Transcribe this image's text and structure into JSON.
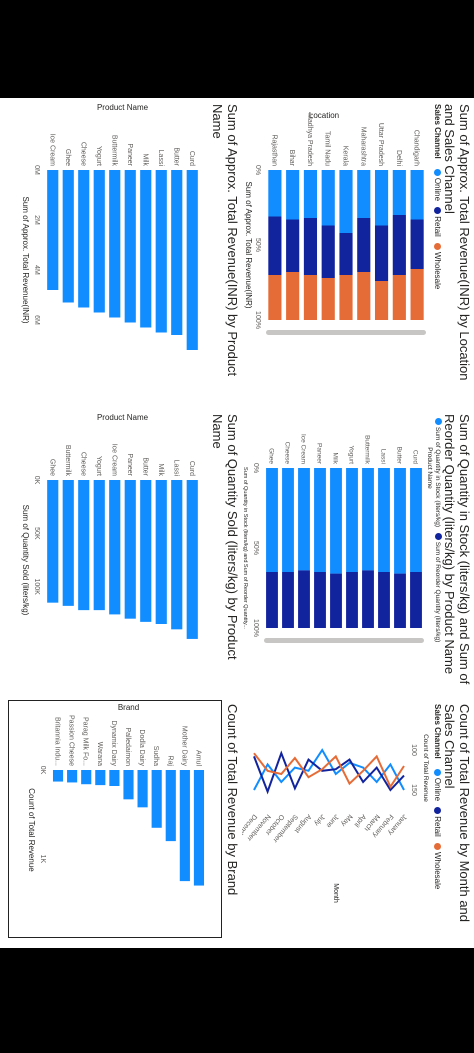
{
  "colors": {
    "online": "#118DFF",
    "retail": "#12239E",
    "wholesale": "#E66C37",
    "bar": "#118DFF"
  },
  "p1": {
    "title": "Sum of Approx. Total Revenue(INR) by Location and Sales Channel",
    "legend_title": "Sales Channel",
    "legend": [
      "Online",
      "Retail",
      "Wholesale"
    ],
    "axis_category": "Location",
    "axis_value": "Sum of Approx. Total Revenue(INR)"
  },
  "p2": {
    "title": "Sum of Quantity in Stock (liters/kg) and Sum of Reorder Quantity (liters/kg) by Product Name",
    "legend": [
      "Sum of Quantity in Stock (liters/kg)",
      "Sum of Reorder Quantity (liters/kg)"
    ],
    "axis_category": "Product Name",
    "axis_value": "Sum of Quantity in Stock (liters/kg) and Sum of Reorder Quantity..."
  },
  "p3": {
    "title": "Count of Total Revenue by Month and Sales Channel",
    "legend_title": "Sales Channel",
    "legend": [
      "Online",
      "Retail",
      "Wholesale"
    ],
    "axis_category": "Month",
    "axis_value": "Count of Total Revenue"
  },
  "p4": {
    "title": "Sum of Approx. Total Revenue(INR) by Product Name",
    "axis_category": "Product Name",
    "axis_value": "Sum of Approx. Total Revenue(INR)"
  },
  "p5": {
    "title": "Sum of Quantity Sold (liters/kg) by Product Name",
    "axis_category": "Product Name",
    "axis_value": "Sum of Quantity Sold (liters/kg)"
  },
  "p6": {
    "title": "Count of Total Revenue by Brand",
    "axis_category": "Brand",
    "axis_value": "Count of Total Revenue"
  },
  "chart_data": [
    {
      "type": "bar",
      "stacked_100": true,
      "title": "Sum of Approx. Total Revenue(INR) by Location and Sales Channel",
      "xlabel": "Sum of Approx. Total Revenue(INR)",
      "ylabel": "Location",
      "categories": [
        "Chandigarh",
        "Delhi",
        "Uttar Pradesh",
        "Maharashtra",
        "Kerala",
        "Tamil Nadu",
        "Madhya Pradesh",
        "Bihar",
        "Rajasthan"
      ],
      "series": [
        {
          "name": "Online",
          "values": [
            33,
            30,
            37,
            32,
            42,
            37,
            32,
            33,
            31
          ]
        },
        {
          "name": "Retail",
          "values": [
            33,
            40,
            37,
            36,
            28,
            35,
            38,
            35,
            39
          ]
        },
        {
          "name": "Wholesale",
          "values": [
            34,
            30,
            26,
            32,
            30,
            28,
            30,
            32,
            30
          ]
        }
      ],
      "ticks": [
        "0%",
        "50%",
        "100%"
      ]
    },
    {
      "type": "bar",
      "stacked_100": true,
      "title": "Sum of Quantity in Stock (liters/kg) and Sum of Reorder Quantity (liters/kg) by Product Name",
      "xlabel": "Sum of Quantity in Stock (liters/kg) and Sum of Reorder Quantity...",
      "ylabel": "Product Name",
      "categories": [
        "Curd",
        "Butter",
        "Lassi",
        "Buttermilk",
        "Yogurt",
        "Milk",
        "Paneer",
        "Ice Cream",
        "Cheese",
        "Ghee"
      ],
      "series": [
        {
          "name": "Sum of Quantity in Stock (liters/kg)",
          "values": [
            65,
            66,
            65,
            64,
            65,
            66,
            65,
            64,
            65,
            65
          ]
        },
        {
          "name": "Sum of Reorder Quantity (liters/kg)",
          "values": [
            35,
            34,
            35,
            36,
            35,
            34,
            35,
            36,
            35,
            35
          ]
        }
      ],
      "ticks": [
        "0%",
        "50%",
        "100%"
      ]
    },
    {
      "type": "line",
      "title": "Count of Total Revenue by Month and Sales Channel",
      "xlabel": "Month",
      "ylabel": "Count of Total Revenue",
      "categories": [
        "January",
        "February",
        "March",
        "April",
        "May",
        "June",
        "July",
        "August",
        "September",
        "October",
        "November",
        "December"
      ],
      "series": [
        {
          "name": "Online",
          "values": [
            150,
            118,
            140,
            122,
            116,
            130,
            100,
            126,
            122,
            140,
            118,
            150
          ]
        },
        {
          "name": "Retail",
          "values": [
            132,
            150,
            122,
            140,
            112,
            124,
            126,
            112,
            148,
            104,
            152,
            108
          ]
        },
        {
          "name": "Wholesale",
          "values": [
            120,
            146,
            108,
            126,
            142,
            108,
            124,
            134,
            110,
            130,
            126,
            104
          ]
        }
      ],
      "ticks": [
        "100",
        "150"
      ],
      "ylim": [
        85,
        160
      ]
    },
    {
      "type": "bar",
      "title": "Sum of Approx. Total Revenue(INR) by Product Name",
      "xlabel": "Sum of Approx. Total Revenue(INR)",
      "ylabel": "Product Name",
      "categories": [
        "Curd",
        "Butter",
        "Lassi",
        "Milk",
        "Paneer",
        "Buttermilk",
        "Yogurt",
        "Cheese",
        "Ghee",
        "Ice Cream"
      ],
      "values": [
        7.2,
        6.6,
        6.5,
        6.3,
        6.1,
        5.9,
        5.7,
        5.5,
        5.3,
        4.8
      ],
      "ticks": [
        "0M",
        "2M",
        "4M",
        "6M"
      ],
      "xlim": [
        0,
        7.2
      ]
    },
    {
      "type": "bar",
      "title": "Sum of Quantity Sold (liters/kg) by Product Name",
      "xlabel": "Sum of Quantity Sold (liters/kg)",
      "ylabel": "Product Name",
      "categories": [
        "Curd",
        "Lassi",
        "Milk",
        "Butter",
        "Paneer",
        "Ice Cream",
        "Yogurt",
        "Cheese",
        "Buttermilk",
        "Ghee"
      ],
      "values": [
        149,
        140,
        135,
        133,
        130,
        126,
        122,
        122,
        118,
        115
      ],
      "ticks": [
        "0K",
        "50K",
        "100K"
      ],
      "xlim": [
        0,
        150
      ]
    },
    {
      "type": "bar",
      "title": "Count of Total Revenue by Brand",
      "xlabel": "Count of Total Revenue",
      "ylabel": "Brand",
      "categories": [
        "Amul",
        "Mother Dairy",
        "Raj",
        "Sudha",
        "Dodla Dairy",
        "Palledaimon",
        "Dynamix Dairy",
        "Warana",
        "Parag Milk Fo...",
        "Passion Cheese",
        "Britannia Indu..."
      ],
      "values": [
        1.3,
        1.25,
        0.8,
        0.65,
        0.42,
        0.33,
        0.18,
        0.17,
        0.16,
        0.14,
        0.13
      ],
      "ticks": [
        "0K",
        "1K"
      ],
      "xlim": [
        0,
        1.35
      ]
    }
  ]
}
